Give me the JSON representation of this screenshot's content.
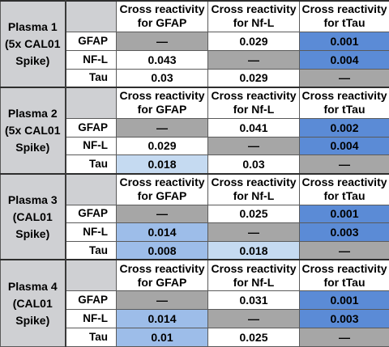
{
  "columns": {
    "gfap": "Cross reactivity for GFAP",
    "nfl": "Cross reactivity for Nf-L",
    "ttau": "Cross reactivity for tTau"
  },
  "colors": {
    "label_bg": "#cfd0d3",
    "gray": "#a6a6a6",
    "white": "#ffffff",
    "light_blue": "#c5daf1",
    "medium_blue": "#9dbde9",
    "dark_blue": "#5b8bd6"
  },
  "groups": [
    {
      "label": "Plasma 1 (5x CAL01 Spike)",
      "show_header": false,
      "rows": [
        {
          "name": "GFAP",
          "cells": [
            {
              "v": "—",
              "c": "gray"
            },
            {
              "v": "0.029",
              "c": "white"
            },
            {
              "v": "0.001",
              "c": "dark_blue"
            }
          ]
        },
        {
          "name": "NF-L",
          "cells": [
            {
              "v": "0.043",
              "c": "white"
            },
            {
              "v": "—",
              "c": "gray"
            },
            {
              "v": "0.004",
              "c": "dark_blue"
            }
          ]
        },
        {
          "name": "Tau",
          "cells": [
            {
              "v": "0.03",
              "c": "white"
            },
            {
              "v": "0.029",
              "c": "white"
            },
            {
              "v": "—",
              "c": "gray"
            }
          ]
        }
      ]
    },
    {
      "label": "Plasma 2 (5x CAL01 Spike)",
      "show_header": true,
      "rows": [
        {
          "name": "GFAP",
          "cells": [
            {
              "v": "—",
              "c": "gray"
            },
            {
              "v": "0.041",
              "c": "white"
            },
            {
              "v": "0.002",
              "c": "dark_blue"
            }
          ]
        },
        {
          "name": "NF-L",
          "cells": [
            {
              "v": "0.029",
              "c": "white"
            },
            {
              "v": "—",
              "c": "gray"
            },
            {
              "v": "0.004",
              "c": "dark_blue"
            }
          ]
        },
        {
          "name": "Tau",
          "cells": [
            {
              "v": "0.018",
              "c": "light_blue"
            },
            {
              "v": "0.03",
              "c": "white"
            },
            {
              "v": "—",
              "c": "gray"
            }
          ]
        }
      ]
    },
    {
      "label": "Plasma 3 (CAL01 Spike)",
      "show_header": true,
      "rows": [
        {
          "name": "GFAP",
          "cells": [
            {
              "v": "—",
              "c": "gray"
            },
            {
              "v": "0.025",
              "c": "white"
            },
            {
              "v": "0.001",
              "c": "dark_blue"
            }
          ]
        },
        {
          "name": "NF-L",
          "cells": [
            {
              "v": "0.014",
              "c": "medium_blue"
            },
            {
              "v": "—",
              "c": "gray"
            },
            {
              "v": "0.003",
              "c": "dark_blue"
            }
          ]
        },
        {
          "name": "Tau",
          "cells": [
            {
              "v": "0.008",
              "c": "medium_blue"
            },
            {
              "v": "0.018",
              "c": "light_blue"
            },
            {
              "v": "—",
              "c": "gray"
            }
          ]
        }
      ]
    },
    {
      "label": "Plasma 4 (CAL01 Spike)",
      "show_header": true,
      "rows": [
        {
          "name": "GFAP",
          "cells": [
            {
              "v": "—",
              "c": "gray"
            },
            {
              "v": "0.031",
              "c": "white"
            },
            {
              "v": "0.001",
              "c": "dark_blue"
            }
          ]
        },
        {
          "name": "NF-L",
          "cells": [
            {
              "v": "0.014",
              "c": "medium_blue"
            },
            {
              "v": "—",
              "c": "gray"
            },
            {
              "v": "0.003",
              "c": "dark_blue"
            }
          ]
        },
        {
          "name": "Tau",
          "cells": [
            {
              "v": "0.01",
              "c": "medium_blue"
            },
            {
              "v": "0.025",
              "c": "white"
            },
            {
              "v": "—",
              "c": "gray"
            }
          ]
        }
      ]
    }
  ]
}
